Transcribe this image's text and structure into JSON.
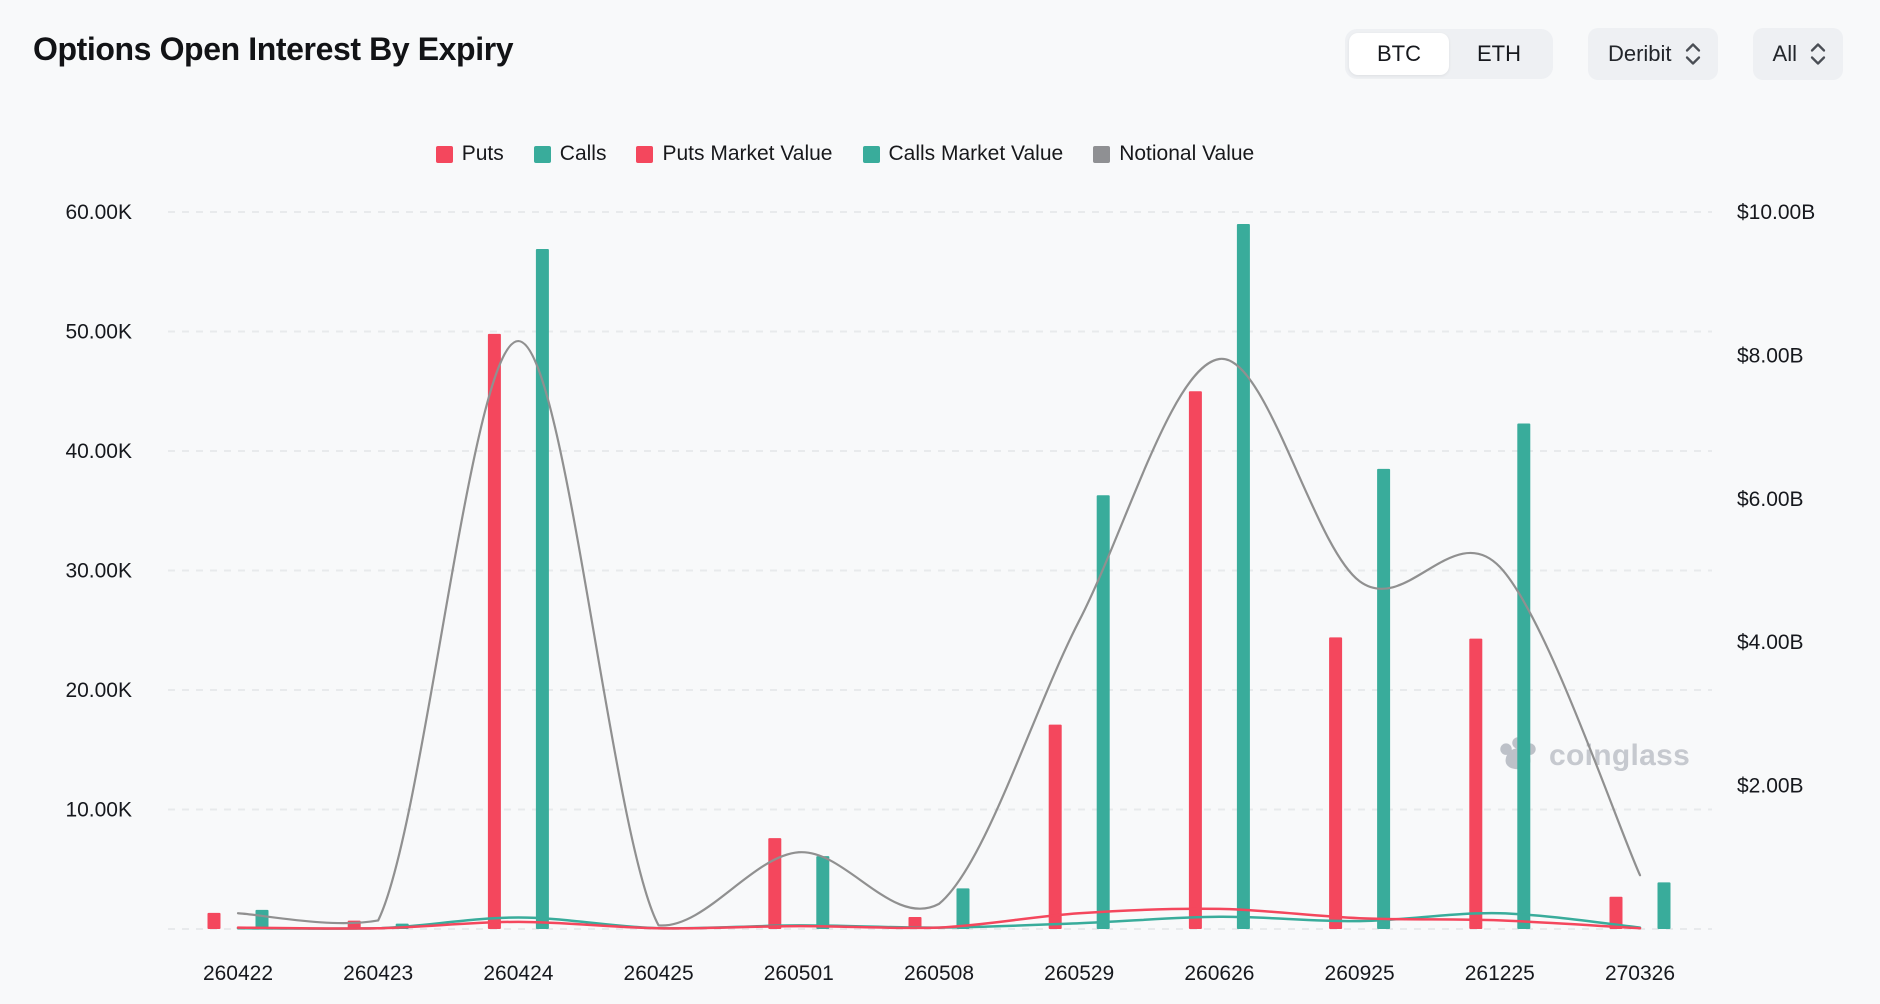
{
  "header": {
    "title": "Options Open Interest By Expiry",
    "coin_toggle": {
      "options": [
        "BTC",
        "ETH"
      ],
      "selected": "BTC"
    },
    "exchange_dropdown": {
      "value": "Deribit",
      "icon": "chevron-up-down-icon"
    },
    "range_dropdown": {
      "value": "All",
      "icon": "chevron-up-down-icon"
    }
  },
  "legend": {
    "items": [
      {
        "label": "Puts",
        "color": "#f4475d"
      },
      {
        "label": "Calls",
        "color": "#39ac9b"
      },
      {
        "label": "Puts Market Value",
        "color": "#f4475d"
      },
      {
        "label": "Calls Market Value",
        "color": "#39ac9b"
      },
      {
        "label": "Notional Value",
        "color": "#8f9093"
      }
    ]
  },
  "watermark": {
    "text": "coinglass",
    "icon": "paw-logo-icon"
  },
  "chart_data": {
    "type": "bar",
    "title": "Options Open Interest By Expiry",
    "categories": [
      "260422",
      "260423",
      "260424",
      "260425",
      "260501",
      "260508",
      "260529",
      "260626",
      "260925",
      "261225",
      "270326"
    ],
    "series": [
      {
        "name": "Puts",
        "type": "bar",
        "axis": "left",
        "unit": "K contracts",
        "color": "#f4475d",
        "values": [
          1.35,
          0.7,
          49.8,
          0,
          7.6,
          1.0,
          17.1,
          45.0,
          24.4,
          24.3,
          2.7
        ]
      },
      {
        "name": "Calls",
        "type": "bar",
        "axis": "left",
        "unit": "K contracts",
        "color": "#39ac9b",
        "values": [
          1.6,
          0.45,
          56.9,
          0,
          6.1,
          3.4,
          36.3,
          59.0,
          38.5,
          42.3,
          3.9
        ]
      },
      {
        "name": "Puts Market Value",
        "type": "line",
        "axis": "right",
        "unit": "$B",
        "color": "#f4475d",
        "values": [
          0.02,
          0.01,
          0.1,
          0.01,
          0.04,
          0.02,
          0.22,
          0.28,
          0.15,
          0.12,
          0.01
        ]
      },
      {
        "name": "Calls Market Value",
        "type": "line",
        "axis": "right",
        "unit": "$B",
        "color": "#39ac9b",
        "values": [
          0.01,
          0.01,
          0.16,
          0.01,
          0.05,
          0.02,
          0.08,
          0.17,
          0.11,
          0.22,
          0.02
        ]
      },
      {
        "name": "Notional Value",
        "type": "line",
        "axis": "right",
        "unit": "$B",
        "color": "#909090",
        "values": [
          0.22,
          0.12,
          8.2,
          0.05,
          1.07,
          0.35,
          4.3,
          7.95,
          4.85,
          5.05,
          0.75
        ]
      }
    ],
    "left_axis": {
      "ticks": [
        10,
        20,
        30,
        40,
        50,
        60
      ],
      "tick_labels": [
        "10.00K",
        "20.00K",
        "30.00K",
        "40.00K",
        "50.00K",
        "60.00K"
      ],
      "min": 0,
      "max": 60
    },
    "right_axis": {
      "ticks": [
        2,
        4,
        6,
        8,
        10
      ],
      "tick_labels": [
        "$2.00B",
        "$4.00B",
        "$6.00B",
        "$8.00B",
        "$10.00B"
      ],
      "min": 0,
      "max": 10
    },
    "grid": "dashed-horizontal",
    "legend_position": "top-center"
  }
}
